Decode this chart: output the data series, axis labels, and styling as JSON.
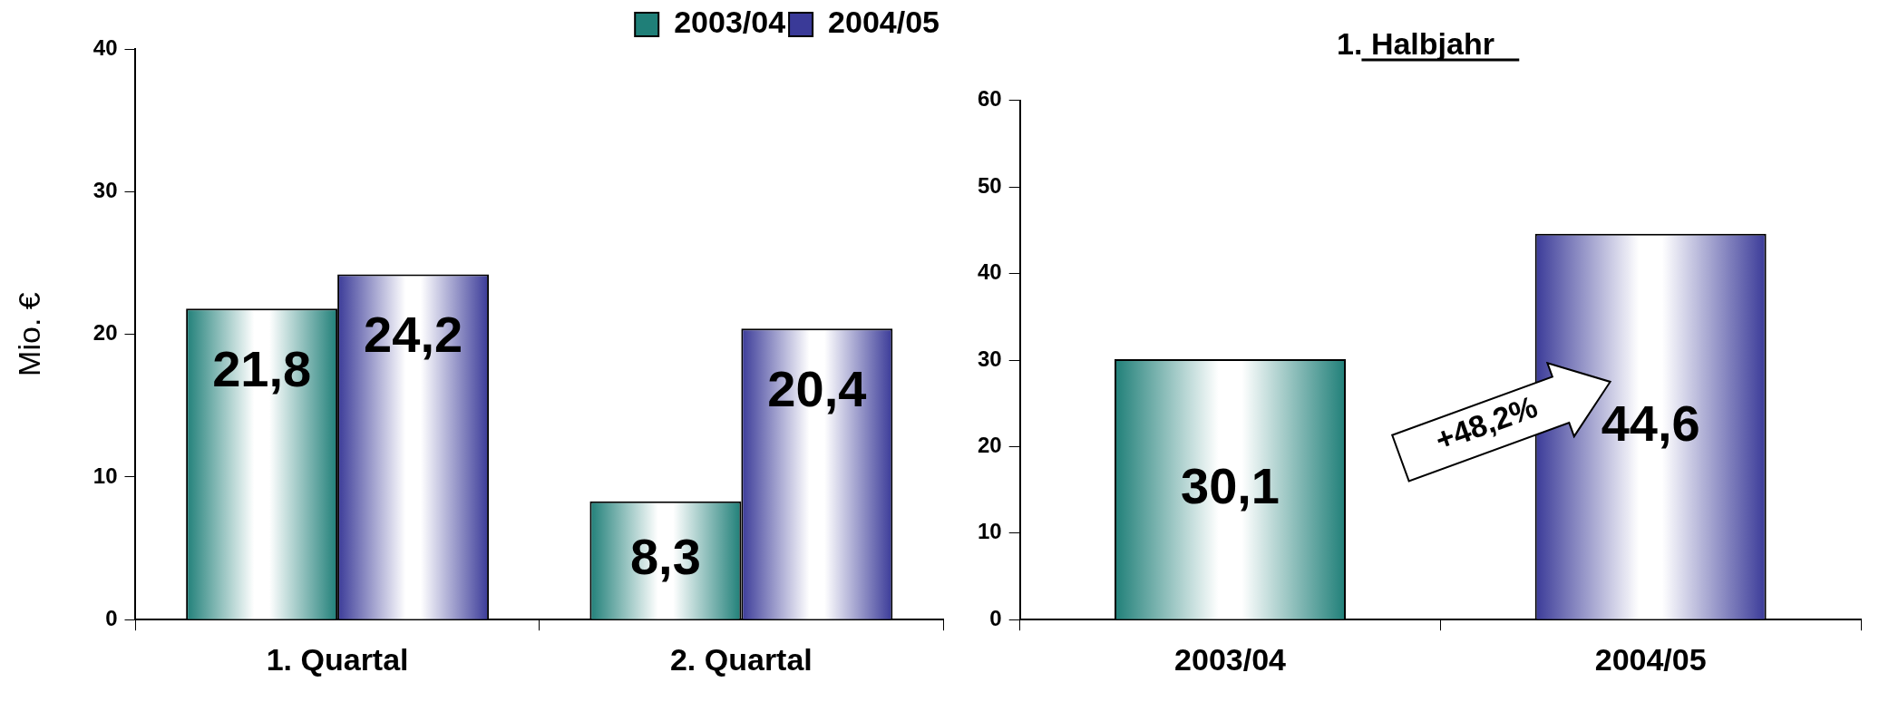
{
  "chart_data": [
    {
      "type": "bar",
      "ylabel": "Mio. €",
      "categories": [
        "1. Quartal",
        "2. Quartal"
      ],
      "series": [
        {
          "name": "2003/04",
          "color": "#1f7f78",
          "values": [
            21.8,
            8.3
          ],
          "value_labels": [
            "21,8",
            "8,3"
          ]
        },
        {
          "name": "2004/05",
          "color": "#3a3a98",
          "values": [
            24.2,
            20.4
          ],
          "value_labels": [
            "24,2",
            "20,4"
          ]
        }
      ],
      "ylim": [
        0,
        40
      ],
      "yticks": [
        0,
        10,
        20,
        30,
        40
      ],
      "grid": false,
      "legend": "top right"
    },
    {
      "type": "bar",
      "title": "1. Halbjahr",
      "categories": [
        "2003/04",
        "2004/05"
      ],
      "values": [
        30.1,
        44.6
      ],
      "colors": [
        "#1f7f78",
        "#3a3a98"
      ],
      "value_labels": [
        "30,1",
        "44,6"
      ],
      "ylim": [
        0,
        60
      ],
      "yticks": [
        0,
        10,
        20,
        30,
        40,
        50,
        60
      ],
      "grid": false,
      "legend": false,
      "annotations": [
        "+48,2%"
      ]
    }
  ]
}
